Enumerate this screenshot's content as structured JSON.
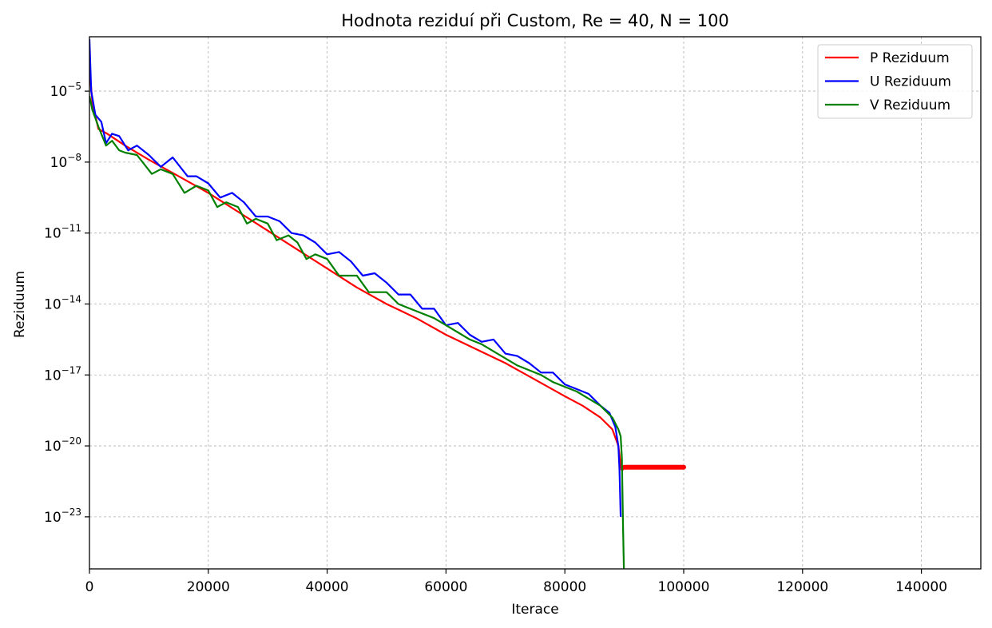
{
  "chart_data": {
    "type": "line",
    "title": "Hodnota reziduí při Custom, Re = 40, N = 100",
    "xlabel": "Iterace",
    "ylabel": "Reziduum",
    "xlim": [
      0,
      150000
    ],
    "ylim_log10": [
      -25.2,
      -2.7
    ],
    "yscale": "log",
    "grid": true,
    "legend_position": "top-right",
    "x_ticks": [
      0,
      20000,
      40000,
      60000,
      80000,
      100000,
      120000,
      140000
    ],
    "y_ticks_exponent": [
      -5,
      -8,
      -11,
      -14,
      -17,
      -20,
      -23
    ],
    "series": [
      {
        "name": "P Reziduum",
        "color": "#ff0000",
        "x": [
          0,
          500,
          1500,
          3000,
          6000,
          10000,
          15000,
          20000,
          25000,
          30000,
          35000,
          40000,
          45000,
          50000,
          55000,
          60000,
          65000,
          70000,
          75000,
          80000,
          83000,
          86000,
          88000,
          89000,
          89500,
          89800,
          90000,
          95000,
          100000
        ],
        "log10_y": [
          -4.0,
          -5.5,
          -6.6,
          -6.8,
          -7.3,
          -7.9,
          -8.6,
          -9.3,
          -10.1,
          -10.9,
          -11.7,
          -12.5,
          -13.3,
          -14.0,
          -14.6,
          -15.3,
          -15.9,
          -16.5,
          -17.2,
          -17.9,
          -18.3,
          -18.8,
          -19.3,
          -20.0,
          -21.0,
          -21.0,
          -20.9,
          -20.9,
          -20.9
        ],
        "solid_from_x": 90000
      },
      {
        "name": "U Reziduum",
        "color": "#0000ff",
        "x": [
          0,
          300,
          1000,
          2000,
          2800,
          3800,
          5000,
          6500,
          8000,
          10000,
          12000,
          14000,
          16500,
          18000,
          20000,
          22000,
          24000,
          26000,
          28000,
          30000,
          32000,
          34000,
          36000,
          38000,
          40000,
          42000,
          44000,
          46000,
          48000,
          50000,
          52000,
          54000,
          56000,
          58000,
          60000,
          62000,
          64000,
          66000,
          68000,
          70000,
          72000,
          74000,
          76000,
          78000,
          80000,
          82000,
          84000,
          86000,
          87500,
          88500,
          89000,
          89200,
          89400
        ],
        "log10_y": [
          -2.8,
          -5.0,
          -6.0,
          -6.3,
          -7.2,
          -6.8,
          -6.9,
          -7.5,
          -7.3,
          -7.7,
          -8.2,
          -7.8,
          -8.6,
          -8.6,
          -8.9,
          -9.5,
          -9.3,
          -9.7,
          -10.3,
          -10.3,
          -10.5,
          -11.0,
          -11.1,
          -11.4,
          -11.9,
          -11.8,
          -12.2,
          -12.8,
          -12.7,
          -13.1,
          -13.6,
          -13.6,
          -14.2,
          -14.2,
          -14.9,
          -14.8,
          -15.3,
          -15.6,
          -15.5,
          -16.1,
          -16.2,
          -16.5,
          -16.9,
          -16.9,
          -17.4,
          -17.6,
          -17.8,
          -18.3,
          -18.6,
          -19.2,
          -20.0,
          -21.0,
          -23.0
        ]
      },
      {
        "name": "V Reziduum",
        "color": "#008000",
        "x": [
          0,
          500,
          1500,
          2800,
          3800,
          5000,
          6000,
          8000,
          10500,
          12000,
          14000,
          16000,
          18000,
          20000,
          21500,
          23000,
          25000,
          26500,
          28000,
          30000,
          31500,
          33500,
          35000,
          36500,
          38000,
          40000,
          42000,
          45000,
          47000,
          50000,
          52000,
          55000,
          58000,
          60000,
          62000,
          64000,
          66000,
          68000,
          70000,
          72000,
          74000,
          76000,
          78000,
          80000,
          82000,
          84000,
          86000,
          88000,
          89000,
          89400,
          89600,
          89800,
          90000
        ],
        "log10_y": [
          -5.2,
          -5.8,
          -6.5,
          -7.3,
          -7.1,
          -7.5,
          -7.6,
          -7.7,
          -8.5,
          -8.3,
          -8.5,
          -9.3,
          -9.0,
          -9.2,
          -9.9,
          -9.7,
          -9.9,
          -10.6,
          -10.4,
          -10.6,
          -11.3,
          -11.1,
          -11.4,
          -12.1,
          -11.9,
          -12.1,
          -12.8,
          -12.8,
          -13.5,
          -13.5,
          -14.0,
          -14.3,
          -14.6,
          -14.9,
          -15.2,
          -15.5,
          -15.7,
          -16.0,
          -16.3,
          -16.6,
          -16.8,
          -17.0,
          -17.3,
          -17.5,
          -17.7,
          -18.0,
          -18.3,
          -18.8,
          -19.3,
          -19.6,
          -20.5,
          -23.5,
          -26.0
        ]
      }
    ]
  }
}
